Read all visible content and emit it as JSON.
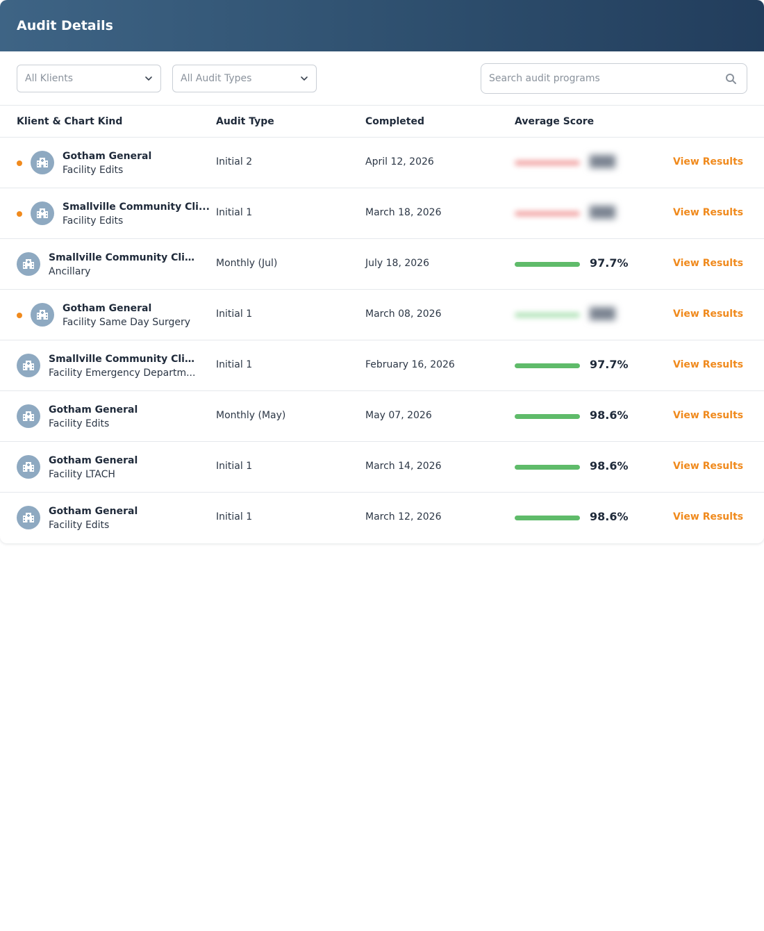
{
  "header": {
    "title": "Audit Details"
  },
  "filters": {
    "klients": "All Klients",
    "audit_types": "All Audit Types",
    "search_placeholder": "Search audit programs"
  },
  "columns": {
    "klient": "Klient & Chart Kind",
    "audit_type": "Audit Type",
    "completed": "Completed",
    "score": "Average Score"
  },
  "colors": {
    "accent": "#f08a1d",
    "score_bar": "#5fbb6a",
    "header_start": "#3e6485",
    "header_end": "#223d5c"
  },
  "rows": [
    {
      "klient": "Gotham General",
      "chart_kind": "Facility Edits",
      "audit_type": "Initial 2",
      "completed": "April 12, 2026",
      "score": "",
      "score_hidden": true,
      "hidden_bar_color": "red",
      "flagged": true,
      "action": "View Results"
    },
    {
      "klient": "Smallville Community Cli...",
      "chart_kind": "Facility Edits",
      "audit_type": "Initial 1",
      "completed": "March 18, 2026",
      "score": "",
      "score_hidden": true,
      "hidden_bar_color": "red",
      "flagged": true,
      "action": "View Results"
    },
    {
      "klient": "Smallville Community Clinic",
      "chart_kind": "Ancillary",
      "audit_type": "Monthly (Jul)",
      "completed": "July 18, 2026",
      "score": "97.7%",
      "score_hidden": false,
      "flagged": false,
      "action": "View Results"
    },
    {
      "klient": "Gotham General",
      "chart_kind": "Facility Same Day Surgery",
      "audit_type": "Initial 1",
      "completed": "March 08, 2026",
      "score": "",
      "score_hidden": true,
      "hidden_bar_color": "green",
      "flagged": true,
      "action": "View Results"
    },
    {
      "klient": "Smallville Community Clinic",
      "chart_kind": "Facility Emergency Departm...",
      "audit_type": "Initial 1",
      "completed": "February 16, 2026",
      "score": "97.7%",
      "score_hidden": false,
      "flagged": false,
      "action": "View Results"
    },
    {
      "klient": "Gotham General",
      "chart_kind": "Facility Edits",
      "audit_type": "Monthly (May)",
      "completed": "May 07, 2026",
      "score": "98.6%",
      "score_hidden": false,
      "flagged": false,
      "action": "View Results"
    },
    {
      "klient": "Gotham General",
      "chart_kind": "Facility LTACH",
      "audit_type": "Initial 1",
      "completed": "March 14, 2026",
      "score": "98.6%",
      "score_hidden": false,
      "flagged": false,
      "action": "View Results"
    },
    {
      "klient": "Gotham General",
      "chart_kind": "Facility Edits",
      "audit_type": "Initial 1",
      "completed": "March 12, 2026",
      "score": "98.6%",
      "score_hidden": false,
      "flagged": false,
      "action": "View Results"
    }
  ]
}
